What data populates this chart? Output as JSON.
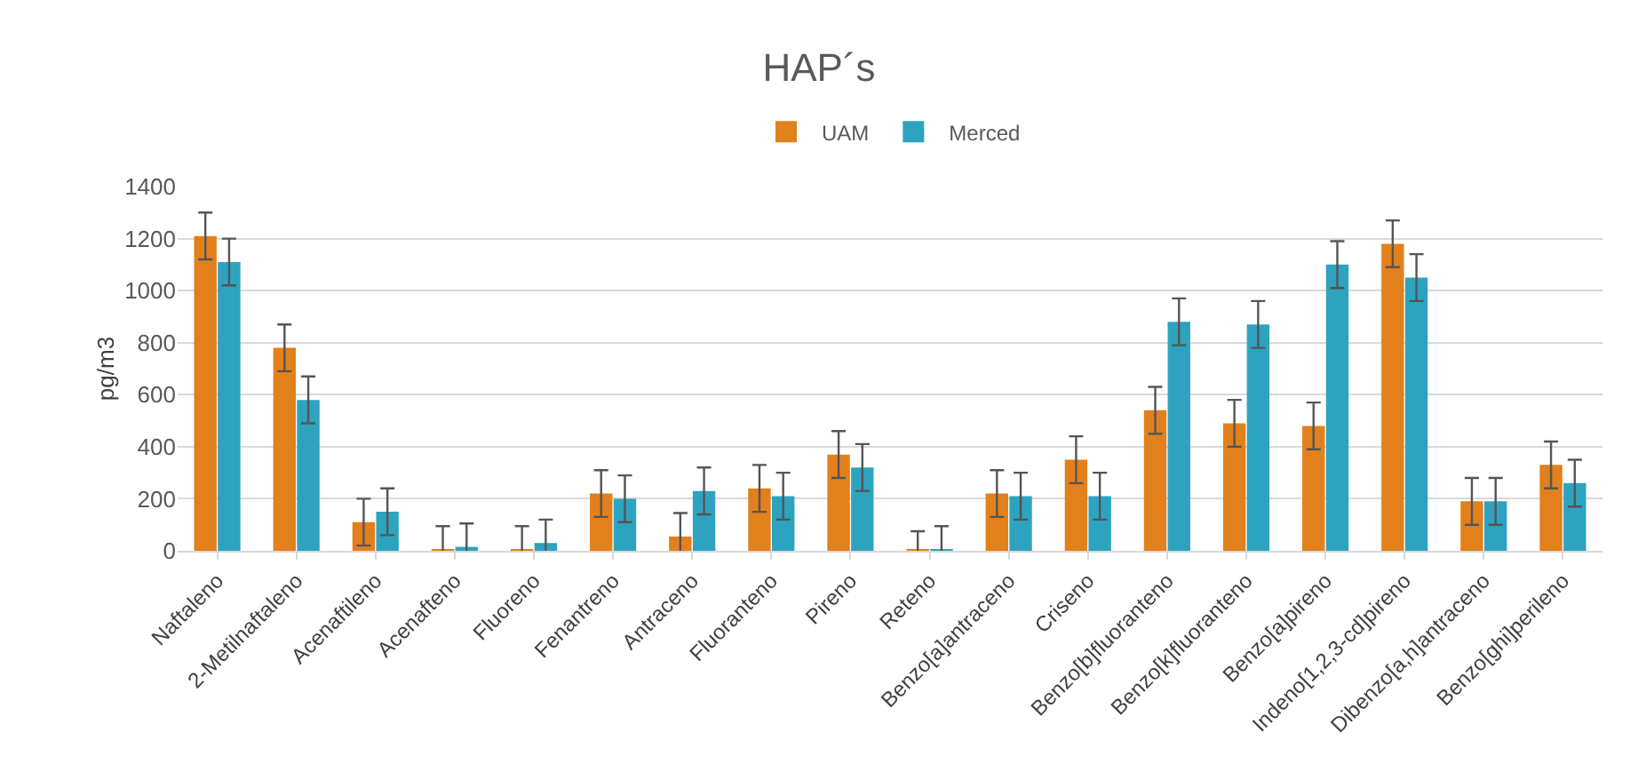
{
  "chart_data": {
    "type": "bar",
    "title": "HAP´s",
    "ylabel": "pg/m3",
    "categories": [
      "Naftaleno",
      "2-Metilnaftaleno",
      "Acenaftileno",
      "Acenafteno",
      "Fluoreno",
      "Fenantreno",
      "Antraceno",
      "Fluoranteno",
      "Pireno",
      "Reteno",
      "Benzo[a]antraceno",
      "Criseno",
      "Benzo[b]fluoranteno",
      "Benzo[k]fluoranteno",
      "Benzo[a]pireno",
      "Indeno[1,2,3-cd]pireno",
      "Dibenzo[a,h]antraceno",
      "Benzo[ghi]perileno"
    ],
    "series": [
      {
        "name": "UAM",
        "color": "#e2801c",
        "values": [
          1210,
          780,
          110,
          5,
          5,
          220,
          55,
          240,
          370,
          5,
          220,
          350,
          540,
          490,
          480,
          1180,
          190,
          330
        ],
        "errors": [
          90,
          90,
          90,
          90,
          90,
          90,
          90,
          90,
          90,
          70,
          90,
          90,
          90,
          90,
          90,
          90,
          90,
          90
        ]
      },
      {
        "name": "Merced",
        "color": "#2ea3c0",
        "values": [
          1110,
          580,
          150,
          15,
          30,
          200,
          230,
          210,
          320,
          5,
          210,
          210,
          880,
          870,
          1100,
          1050,
          190,
          260
        ],
        "errors": [
          90,
          90,
          90,
          90,
          90,
          90,
          90,
          90,
          90,
          90,
          90,
          90,
          90,
          90,
          90,
          90,
          90,
          90
        ]
      }
    ],
    "ylim": [
      0,
      1400
    ],
    "yticks": [
      0,
      200,
      400,
      600,
      800,
      1000,
      1200,
      1400
    ],
    "grid": "y",
    "legend": "top"
  }
}
